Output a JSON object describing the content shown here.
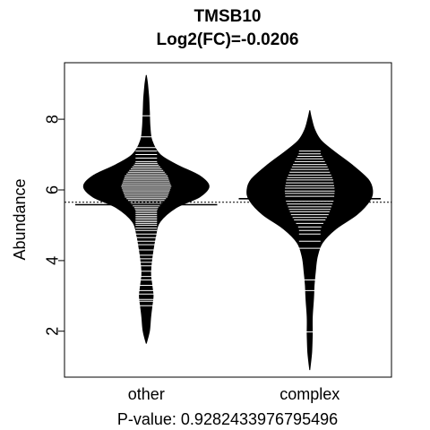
{
  "chart_data": {
    "type": "beanplot",
    "title": "TMSB10",
    "subtitle": "Log2(FC)=-0.0206",
    "xlabel": "P-value: 0.9282433976795496",
    "ylabel": "Abundance",
    "ylim": [
      0.7,
      9.6
    ],
    "yticks": [
      2,
      4,
      6,
      8
    ],
    "categories": [
      "other",
      "complex"
    ],
    "overall_mean": 5.65,
    "grid": false,
    "legend": "none",
    "groups": [
      {
        "name": "other",
        "mean": 5.58,
        "range": [
          1.65,
          9.25
        ],
        "density": [
          [
            1.65,
            0.0
          ],
          [
            2.0,
            0.05
          ],
          [
            2.4,
            0.07
          ],
          [
            2.7,
            0.09
          ],
          [
            3.0,
            0.11
          ],
          [
            3.3,
            0.09
          ],
          [
            3.6,
            0.07
          ],
          [
            3.9,
            0.08
          ],
          [
            4.3,
            0.11
          ],
          [
            4.7,
            0.15
          ],
          [
            5.1,
            0.22
          ],
          [
            5.5,
            0.48
          ],
          [
            5.8,
            0.85
          ],
          [
            6.1,
            1.0
          ],
          [
            6.4,
            0.85
          ],
          [
            6.7,
            0.5
          ],
          [
            7.0,
            0.22
          ],
          [
            7.4,
            0.09
          ],
          [
            7.8,
            0.06
          ],
          [
            8.2,
            0.05
          ],
          [
            8.6,
            0.04
          ],
          [
            9.0,
            0.02
          ],
          [
            9.25,
            0.0
          ]
        ],
        "points": [
          2.72,
          2.85,
          2.9,
          3.05,
          3.15,
          3.3,
          3.45,
          3.55,
          3.7,
          3.85,
          3.95,
          4.05,
          4.15,
          4.3,
          4.45,
          4.55,
          4.65,
          4.75,
          4.85,
          4.92,
          5.0,
          5.05,
          5.1,
          5.15,
          5.2,
          5.25,
          5.3,
          5.35,
          5.4,
          5.45,
          5.5,
          5.55,
          5.6,
          5.65,
          5.7,
          5.75,
          5.8,
          5.85,
          5.9,
          5.95,
          6.0,
          6.05,
          6.1,
          6.15,
          6.2,
          6.25,
          6.3,
          6.35,
          6.4,
          6.45,
          6.5,
          6.55,
          6.6,
          6.65,
          6.7,
          6.75,
          6.8,
          6.9,
          7.0,
          7.1,
          7.2,
          7.5,
          8.1
        ]
      },
      {
        "name": "complex",
        "mean": 5.75,
        "range": [
          0.9,
          8.25
        ],
        "density": [
          [
            0.9,
            0.0
          ],
          [
            1.4,
            0.03
          ],
          [
            1.9,
            0.04
          ],
          [
            2.4,
            0.04
          ],
          [
            2.9,
            0.06
          ],
          [
            3.3,
            0.07
          ],
          [
            3.7,
            0.09
          ],
          [
            4.1,
            0.12
          ],
          [
            4.5,
            0.2
          ],
          [
            4.9,
            0.42
          ],
          [
            5.3,
            0.75
          ],
          [
            5.7,
            0.96
          ],
          [
            6.0,
            1.0
          ],
          [
            6.3,
            0.93
          ],
          [
            6.7,
            0.68
          ],
          [
            7.1,
            0.38
          ],
          [
            7.4,
            0.18
          ],
          [
            7.7,
            0.08
          ],
          [
            8.0,
            0.03
          ],
          [
            8.25,
            0.0
          ]
        ],
        "points": [
          1.98,
          3.15,
          3.45,
          4.35,
          4.55,
          4.75,
          4.85,
          4.95,
          5.05,
          5.15,
          5.22,
          5.3,
          5.38,
          5.45,
          5.52,
          5.6,
          5.68,
          5.75,
          5.82,
          5.9,
          5.97,
          6.05,
          6.12,
          6.2,
          6.28,
          6.35,
          6.42,
          6.5,
          6.58,
          6.65,
          6.72,
          6.8,
          6.88,
          6.95,
          7.02,
          7.1
        ]
      }
    ]
  }
}
